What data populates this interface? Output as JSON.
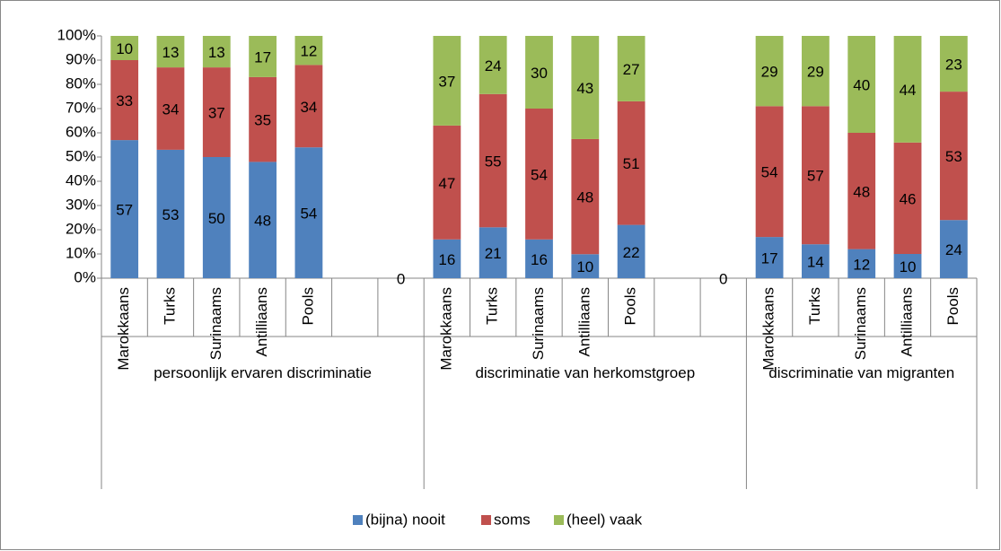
{
  "chart_data": {
    "type": "stacked_bar_percent",
    "categories": [
      "Marokkaans",
      "Turks",
      "Surinaams",
      "Antilliaans",
      "Pools",
      null,
      null,
      "Marokkaans",
      "Turks",
      "Surinaams",
      "Antilliaans",
      "Pools",
      null,
      null,
      "Marokkaans",
      "Turks",
      "Surinaams",
      "Antilliaans",
      "Pools"
    ],
    "groups": [
      "persoonlijk ervaren discriminatie",
      "discriminatie van herkomstgroep",
      "discriminatie van migranten"
    ],
    "series": [
      {
        "name": "(bijna) nooit",
        "color": "#4f81bd",
        "values": [
          57,
          53,
          50,
          48,
          54,
          null,
          0,
          16,
          21,
          16,
          10,
          22,
          null,
          0,
          17,
          14,
          12,
          10,
          24
        ]
      },
      {
        "name": "soms",
        "color": "#c0504d",
        "values": [
          33,
          34,
          37,
          35,
          34,
          null,
          null,
          47,
          55,
          54,
          48,
          51,
          null,
          null,
          54,
          57,
          48,
          46,
          53
        ]
      },
      {
        "name": "(heel) vaak",
        "color": "#9bbb59",
        "values": [
          10,
          13,
          13,
          17,
          12,
          null,
          null,
          37,
          24,
          30,
          43,
          27,
          null,
          null,
          29,
          29,
          40,
          44,
          23
        ]
      }
    ],
    "ylim": [
      0,
      100
    ],
    "yticks": [
      {
        "value": 0,
        "label": "0%"
      },
      {
        "value": 10,
        "label": "10%"
      },
      {
        "value": 20,
        "label": "20%"
      },
      {
        "value": 30,
        "label": "30%"
      },
      {
        "value": 40,
        "label": "40%"
      },
      {
        "value": 50,
        "label": "50%"
      },
      {
        "value": 60,
        "label": "60%"
      },
      {
        "value": 70,
        "label": "70%"
      },
      {
        "value": 80,
        "label": "80%"
      },
      {
        "value": 90,
        "label": "90%"
      },
      {
        "value": 100,
        "label": "100%"
      }
    ],
    "legend": "bottom"
  }
}
